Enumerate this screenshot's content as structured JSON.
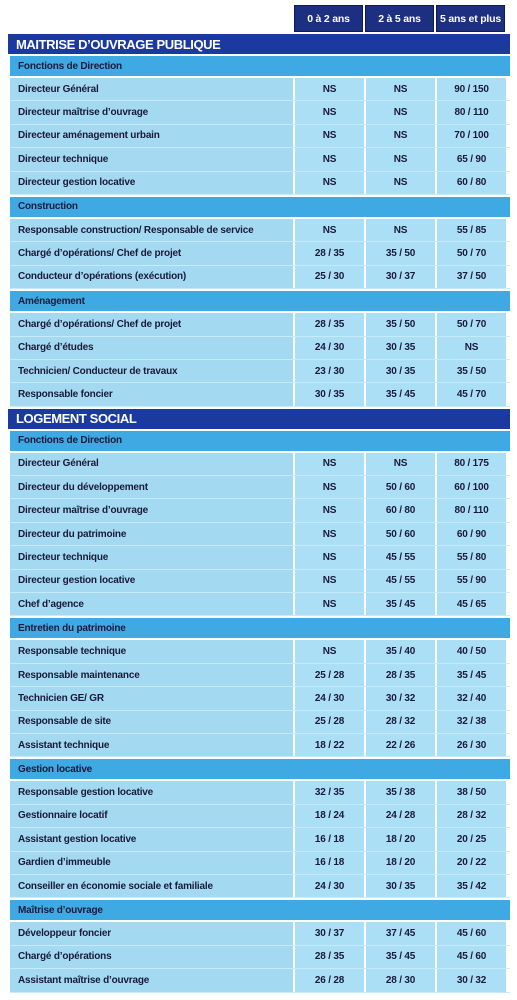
{
  "header": {
    "columns": [
      "0 à 2 ans",
      "2 à 5 ans",
      "5 ans et plus"
    ]
  },
  "sections": [
    {
      "title": "MAITRISE D’OUVRAGE PUBLIQUE",
      "groups": [
        {
          "title": "Fonctions de Direction",
          "rows": [
            {
              "label": "Directeur Général",
              "values": [
                "NS",
                "NS",
                "90 / 150"
              ]
            },
            {
              "label": "Directeur maîtrise d’ouvrage",
              "values": [
                "NS",
                "NS",
                "80 / 110"
              ]
            },
            {
              "label": "Directeur aménagement urbain",
              "values": [
                "NS",
                "NS",
                "70 / 100"
              ]
            },
            {
              "label": "Directeur technique",
              "values": [
                "NS",
                "NS",
                "65 / 90"
              ]
            },
            {
              "label": "Directeur gestion locative",
              "values": [
                "NS",
                "NS",
                "60 / 80"
              ]
            }
          ]
        },
        {
          "title": "Construction",
          "rows": [
            {
              "label": "Responsable construction/ Responsable de service",
              "values": [
                "NS",
                "NS",
                "55 / 85"
              ]
            },
            {
              "label": "Chargé d’opérations/ Chef de projet",
              "values": [
                "28 / 35",
                "35 / 50",
                "50 / 70"
              ]
            },
            {
              "label": "Conducteur d’opérations (exécution)",
              "values": [
                "25 / 30",
                "30 / 37",
                "37 / 50"
              ]
            }
          ]
        },
        {
          "title": "Aménagement",
          "rows": [
            {
              "label": "Chargé d’opérations/ Chef de projet",
              "values": [
                "28 / 35",
                "35 / 50",
                "50 / 70"
              ]
            },
            {
              "label": "Chargé d’études",
              "values": [
                "24 / 30",
                "30 / 35",
                "NS"
              ]
            },
            {
              "label": "Technicien/ Conducteur de travaux",
              "values": [
                "23 / 30",
                "30 / 35",
                "35 / 50"
              ]
            },
            {
              "label": "Responsable foncier",
              "values": [
                "30 / 35",
                "35 / 45",
                "45 / 70"
              ]
            }
          ]
        }
      ]
    },
    {
      "title": "LOGEMENT SOCIAL",
      "groups": [
        {
          "title": "Fonctions de Direction",
          "rows": [
            {
              "label": "Directeur Général",
              "values": [
                "NS",
                "NS",
                "80 / 175"
              ]
            },
            {
              "label": "Directeur du développement",
              "values": [
                "NS",
                "50 / 60",
                "60 / 100"
              ]
            },
            {
              "label": "Directeur maîtrise d’ouvrage",
              "values": [
                "NS",
                "60 / 80",
                "80 / 110"
              ]
            },
            {
              "label": "Directeur du patrimoine",
              "values": [
                "NS",
                "50 / 60",
                "60 / 90"
              ]
            },
            {
              "label": "Directeur technique",
              "values": [
                "NS",
                "45 / 55",
                "55 / 80"
              ]
            },
            {
              "label": "Directeur gestion locative",
              "values": [
                "NS",
                "45 / 55",
                "55 / 90"
              ]
            },
            {
              "label": "Chef d’agence",
              "values": [
                "NS",
                "35 / 45",
                "45 / 65"
              ]
            }
          ]
        },
        {
          "title": "Entretien du patrimoine",
          "rows": [
            {
              "label": "Responsable technique",
              "values": [
                "NS",
                "35 / 40",
                "40 / 50"
              ]
            },
            {
              "label": "Responsable maintenance",
              "values": [
                "25 / 28",
                "28 / 35",
                "35 / 45"
              ]
            },
            {
              "label": "Technicien GE/ GR",
              "values": [
                "24 / 30",
                "30 / 32",
                "32 / 40"
              ]
            },
            {
              "label": "Responsable de site",
              "values": [
                "25 / 28",
                "28 / 32",
                "32 / 38"
              ]
            },
            {
              "label": "Assistant technique",
              "values": [
                "18 / 22",
                "22 / 26",
                "26 / 30"
              ]
            }
          ]
        },
        {
          "title": "Gestion locative",
          "rows": [
            {
              "label": "Responsable gestion locative",
              "values": [
                "32 / 35",
                "35 / 38",
                "38 / 50"
              ]
            },
            {
              "label": "Gestionnaire locatif",
              "values": [
                "18 / 24",
                "24 / 28",
                "28 / 32"
              ]
            },
            {
              "label": "Assistant gestion locative",
              "values": [
                "16 / 18",
                "18 / 20",
                "20 / 25"
              ]
            },
            {
              "label": "Gardien d’immeuble",
              "values": [
                "16 / 18",
                "18 / 20",
                "20 / 22"
              ]
            },
            {
              "label": "Conseiller en économie sociale et familiale",
              "values": [
                "24 / 30",
                "30 / 35",
                "35 / 42"
              ]
            }
          ]
        },
        {
          "title": "Maîtrise d’ouvrage",
          "rows": [
            {
              "label": "Développeur foncier",
              "values": [
                "30 / 37",
                "37 / 45",
                "45 / 60"
              ]
            },
            {
              "label": "Chargé d’opérations",
              "values": [
                "28 / 35",
                "35 / 45",
                "45 / 60"
              ]
            },
            {
              "label": "Assistant maîtrise d’ouvrage",
              "values": [
                "26 / 28",
                "28 / 30",
                "30 / 32"
              ]
            }
          ]
        }
      ]
    }
  ]
}
